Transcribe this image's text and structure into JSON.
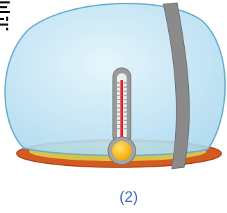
{
  "caption": "(2)"
}
